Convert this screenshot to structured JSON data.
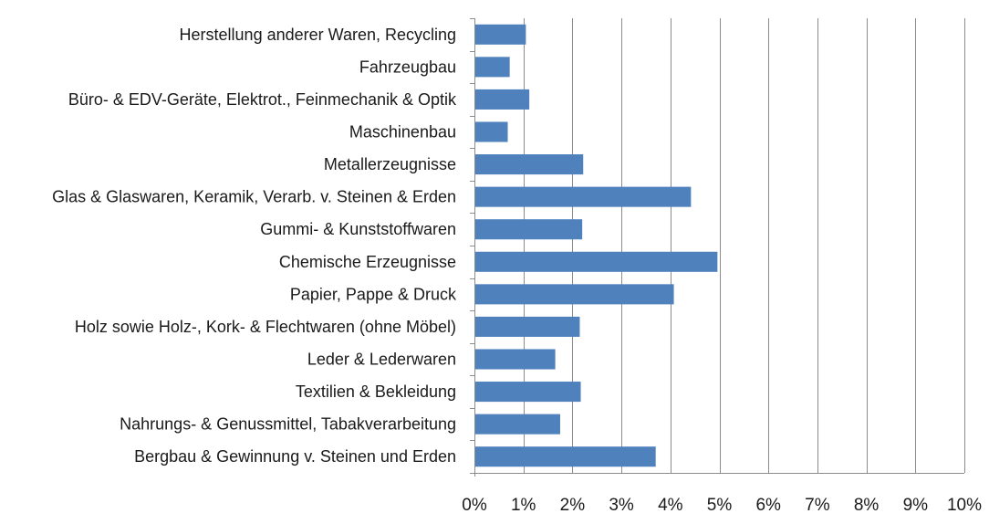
{
  "chart_data": {
    "type": "bar",
    "orientation": "horizontal",
    "categories": [
      "Herstellung anderer Waren, Recycling",
      "Fahrzeugbau",
      "Büro- & EDV-Geräte, Elektrot., Feinmechanik & Optik",
      "Maschinenbau",
      "Metallerzeugnisse",
      "Glas & Glaswaren, Keramik, Verarb. v. Steinen & Erden",
      "Gummi- & Kunststoffwaren",
      "Chemische Erzeugnisse",
      "Papier, Pappe & Druck",
      "Holz sowie Holz-, Kork- & Flechtwaren (ohne Möbel)",
      "Leder & Lederwaren",
      "Textilien & Bekleidung",
      "Nahrungs- & Genussmittel, Tabakverarbeitung",
      "Bergbau & Gewinnung v. Steinen und Erden"
    ],
    "values": [
      1.05,
      0.72,
      1.12,
      0.68,
      2.22,
      4.42,
      2.2,
      4.96,
      4.07,
      2.15,
      1.65,
      2.17,
      1.75,
      3.7
    ],
    "title": "",
    "xlabel": "",
    "ylabel": "",
    "xlim": [
      0,
      10
    ],
    "ticks": [
      "0%",
      "1%",
      "2%",
      "3%",
      "4%",
      "5%",
      "6%",
      "7%",
      "8%",
      "9%",
      "10%"
    ],
    "grid": "vertical",
    "bar_color": "#4f81bd"
  }
}
